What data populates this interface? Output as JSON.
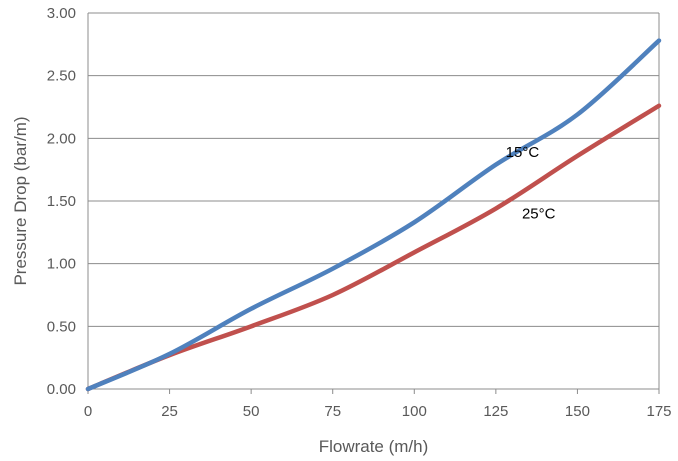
{
  "chart_data": {
    "type": "line",
    "title": "",
    "xlabel": "Flowrate (m/h)",
    "ylabel": "Pressure Drop (bar/m)",
    "xlim": [
      0,
      175
    ],
    "ylim": [
      0,
      3.0
    ],
    "x_ticks": [
      "0",
      "25",
      "50",
      "75",
      "100",
      "125",
      "150",
      "175"
    ],
    "y_ticks": [
      "0.00",
      "0.50",
      "1.00",
      "1.50",
      "2.00",
      "2.50",
      "3.00"
    ],
    "grid": "horizontal",
    "legend": "none",
    "series": [
      {
        "name": "15°C",
        "color": "#4f81bd",
        "x": [
          0,
          25,
          50,
          75,
          100,
          125,
          150,
          175
        ],
        "y": [
          0,
          0.28,
          0.64,
          0.96,
          1.33,
          1.79,
          2.19,
          2.78
        ]
      },
      {
        "name": "25°C",
        "color": "#c0504d",
        "x": [
          0,
          25,
          50,
          75,
          100,
          125,
          150,
          175
        ],
        "y": [
          0,
          0.27,
          0.5,
          0.75,
          1.09,
          1.44,
          1.86,
          2.26
        ]
      }
    ]
  }
}
